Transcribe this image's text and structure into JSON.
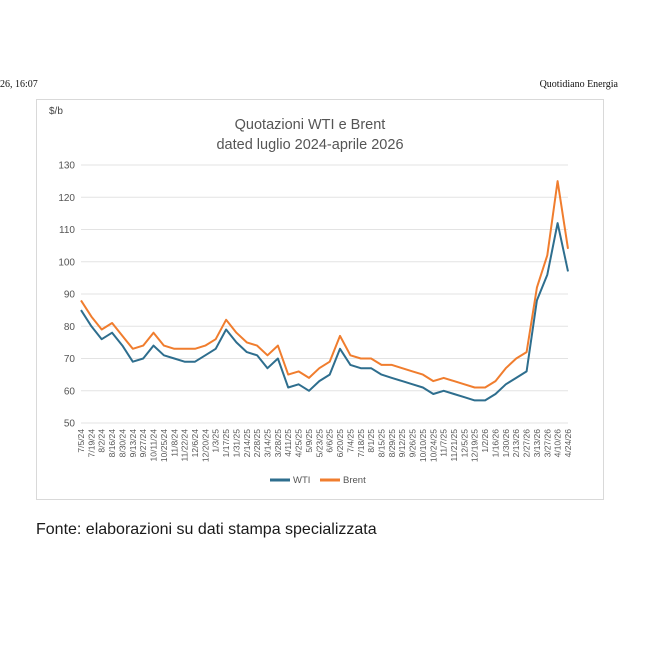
{
  "header": {
    "left_text": "26, 16:07",
    "right_text": "Quotidiano Energia"
  },
  "caption": "Fonte: elaborazioni su dati stampa specializzata",
  "chart_data": {
    "type": "line",
    "title": "Quotazioni WTI e Brent",
    "subtitle": "dated luglio 2024-aprile 2026",
    "ylabel": "$/b",
    "xlabel": "",
    "ylim": [
      50,
      130
    ],
    "yticks": [
      50,
      60,
      70,
      80,
      90,
      100,
      110,
      120,
      130
    ],
    "grid": "horizontal",
    "legend_position": "bottom-center",
    "categories": [
      "7/5/24",
      "7/19/24",
      "8/2/24",
      "8/16/24",
      "8/30/24",
      "9/13/24",
      "9/27/24",
      "10/11/24",
      "10/25/24",
      "11/8/24",
      "11/22/24",
      "12/6/24",
      "12/20/24",
      "1/3/25",
      "1/17/25",
      "1/31/25",
      "2/14/25",
      "2/28/25",
      "3/14/25",
      "3/28/25",
      "4/11/25",
      "4/25/25",
      "5/9/25",
      "5/23/25",
      "6/6/25",
      "6/20/25",
      "7/4/25",
      "7/18/25",
      "8/1/25",
      "8/15/25",
      "8/29/25",
      "9/12/25",
      "9/26/25",
      "10/10/25",
      "10/24/25",
      "11/7/25",
      "11/21/25",
      "12/5/25",
      "12/19/25",
      "1/2/26",
      "1/16/26",
      "1/30/26",
      "2/13/26",
      "2/27/26",
      "3/13/26",
      "3/27/26",
      "4/10/26",
      "4/24/26"
    ],
    "series": [
      {
        "name": "WTI",
        "color": "#2e6e8e",
        "values": [
          85,
          80,
          76,
          78,
          74,
          69,
          70,
          74,
          71,
          70,
          69,
          69,
          71,
          73,
          79,
          75,
          72,
          71,
          67,
          70,
          61,
          62,
          60,
          63,
          65,
          73,
          68,
          67,
          67,
          65,
          64,
          63,
          62,
          61,
          59,
          60,
          59,
          58,
          57,
          57,
          59,
          62,
          64,
          66,
          88,
          96,
          112,
          97
        ]
      },
      {
        "name": "Brent",
        "color": "#f07d2e",
        "values": [
          88,
          83,
          79,
          81,
          77,
          73,
          74,
          78,
          74,
          73,
          73,
          73,
          74,
          76,
          82,
          78,
          75,
          74,
          71,
          74,
          65,
          66,
          64,
          67,
          69,
          77,
          71,
          70,
          70,
          68,
          68,
          67,
          66,
          65,
          63,
          64,
          63,
          62,
          61,
          61,
          63,
          67,
          70,
          72,
          92,
          102,
          125,
          104
        ]
      }
    ]
  }
}
